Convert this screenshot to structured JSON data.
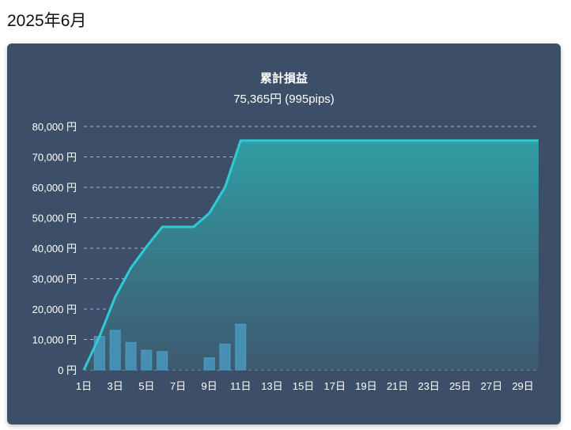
{
  "page": {
    "title": "2025年6月"
  },
  "chart_data": {
    "type": "line",
    "title": "累計損益",
    "subtitle": "75,365円 (995pips)",
    "y_tick_labels": [
      "0 円",
      "10,000 円",
      "20,000 円",
      "30,000 円",
      "40,000 円",
      "50,000 円",
      "60,000 円",
      "70,000 円",
      "80,000 円"
    ],
    "y_ticks": [
      0,
      10000,
      20000,
      30000,
      40000,
      50000,
      60000,
      70000,
      80000
    ],
    "ylim": [
      0,
      80000
    ],
    "x_tick_labels": [
      "1日",
      "3日",
      "5日",
      "7日",
      "9日",
      "11日",
      "13日",
      "15日",
      "17日",
      "19日",
      "21日",
      "23日",
      "25日",
      "27日",
      "29日"
    ],
    "x_ticks": [
      1,
      3,
      5,
      7,
      9,
      11,
      13,
      15,
      17,
      19,
      21,
      23,
      25,
      27,
      29
    ],
    "xlim": [
      1,
      30
    ],
    "grid": true,
    "colors": {
      "line": "#2ecbd6",
      "bar": "#4a9fc8",
      "fill_top": "#2fa5aa",
      "fill_bottom": "#3e5a70",
      "background": "#3d4f68"
    },
    "series": [
      {
        "type": "line",
        "x": [
          1,
          2,
          3,
          4,
          5,
          6,
          7,
          8,
          9,
          10,
          11,
          12,
          13,
          14,
          15,
          16,
          17,
          18,
          19,
          20,
          21,
          22,
          23,
          24,
          25,
          26,
          27,
          28,
          29,
          30
        ],
        "values": [
          0,
          11000,
          24000,
          33500,
          40500,
          47000,
          47000,
          47000,
          51500,
          60000,
          75365,
          75365,
          75365,
          75365,
          75365,
          75365,
          75365,
          75365,
          75365,
          75365,
          75365,
          75365,
          75365,
          75365,
          75365,
          75365,
          75365,
          75365,
          75365,
          75365
        ]
      },
      {
        "type": "bar",
        "x": [
          2,
          3,
          4,
          5,
          6,
          9,
          10,
          11
        ],
        "values": [
          11000,
          13000,
          9000,
          6500,
          6000,
          4000,
          8500,
          15000
        ]
      }
    ]
  }
}
